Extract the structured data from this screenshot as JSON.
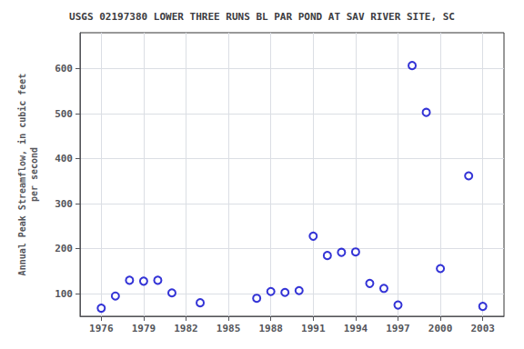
{
  "chart_data": {
    "type": "scatter",
    "title": "USGS 02197380 LOWER THREE RUNS BL PAR POND AT SAV RIVER SITE, SC",
    "ylabel": "Annual Peak Streamflow, in cubic feet\nper second",
    "x": [
      1976,
      1977,
      1978,
      1979,
      1980,
      1981,
      1983,
      1987,
      1988,
      1989,
      1990,
      1991,
      1992,
      1993,
      1994,
      1995,
      1996,
      1997,
      1998,
      1999,
      2000,
      2002,
      2003
    ],
    "values": [
      68,
      95,
      130,
      128,
      130,
      102,
      80,
      90,
      105,
      103,
      107,
      228,
      185,
      192,
      193,
      123,
      112,
      75,
      607,
      503,
      156,
      362,
      72
    ],
    "xlim": [
      1974.5,
      2004.5
    ],
    "ylim": [
      50,
      680
    ],
    "xticks": [
      1976,
      1979,
      1982,
      1985,
      1988,
      1991,
      1994,
      1997,
      2000,
      2003
    ],
    "yticks": [
      100,
      200,
      300,
      400,
      500,
      600
    ],
    "color": "#0000cc",
    "marker": "circle",
    "grid": true
  }
}
